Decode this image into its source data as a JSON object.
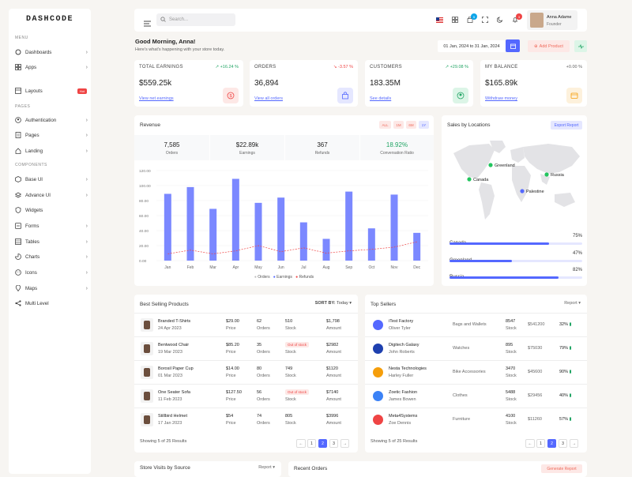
{
  "brand": "DASHCODE",
  "sidebar": {
    "menu_label": "MENU",
    "pages_label": "PAGES",
    "components_label": "COMPONENTS",
    "menu": [
      {
        "label": "Dashboards"
      },
      {
        "label": "Apps"
      },
      {
        "label": "Layouts",
        "badge": "Hot"
      }
    ],
    "pages": [
      {
        "label": "Authentication"
      },
      {
        "label": "Pages"
      },
      {
        "label": "Landing"
      }
    ],
    "components": [
      {
        "label": "Base UI"
      },
      {
        "label": "Advance UI"
      },
      {
        "label": "Widgets"
      },
      {
        "label": "Forms"
      },
      {
        "label": "Tables"
      },
      {
        "label": "Charts"
      },
      {
        "label": "Icons"
      },
      {
        "label": "Maps"
      },
      {
        "label": "Multi Level"
      }
    ]
  },
  "header": {
    "search_placeholder": "Search...",
    "cart_count": "5",
    "notif_count": "3",
    "user_name": "Anna Adame",
    "user_role": "Founder"
  },
  "greeting": {
    "title": "Good Morning, Anna!",
    "subtitle": "Here's what's happening with your store today.",
    "date_range": "01 Jan, 2024 to 31 Jan, 2024",
    "add_product": "Add Product"
  },
  "stats": [
    {
      "title": "TOTAL EARNINGS",
      "pct": "+16.24 %",
      "value": "$559.25k",
      "link": "View net earnings",
      "color": "#ef4444",
      "pct_color": "#22a565"
    },
    {
      "title": "ORDERS",
      "pct": "-3.57 %",
      "value": "36,894",
      "link": "View all orders",
      "color": "#5468ff",
      "pct_color": "#ef4444"
    },
    {
      "title": "CUSTOMERS",
      "pct": "+29.08 %",
      "value": "183.35M",
      "link": "See details",
      "color": "#22a565",
      "pct_color": "#22a565"
    },
    {
      "title": "MY BALANCE",
      "pct": "+0.00 %",
      "value": "$165.89k",
      "link": "Withdraw money",
      "color": "#f59e0b",
      "pct_color": "#666"
    }
  ],
  "revenue": {
    "title": "Revenue",
    "buttons": [
      "ALL",
      "1M",
      "6M",
      "1Y"
    ],
    "summary": [
      {
        "value": "7,585",
        "label": "Orders"
      },
      {
        "value": "$22.89k",
        "label": "Earnings"
      },
      {
        "value": "367",
        "label": "Refunds"
      },
      {
        "value": "18.92%",
        "label": "Conversation Ratio"
      }
    ],
    "legend": [
      "Orders",
      "Earnings",
      "Refunds"
    ]
  },
  "chart_data": {
    "type": "bar",
    "title": "Revenue",
    "categories": [
      "Jan",
      "Feb",
      "Mar",
      "Apr",
      "May",
      "Jun",
      "Jul",
      "Aug",
      "Sep",
      "Oct",
      "Nov",
      "Dec"
    ],
    "ylim": [
      0,
      120
    ],
    "yticks": [
      "120.00",
      "100.00",
      "80.00",
      "60.00",
      "40.00",
      "20.00",
      "0.00"
    ],
    "series": [
      {
        "name": "Earnings",
        "type": "bar",
        "values": [
          89,
          98,
          69,
          109,
          77,
          84,
          51,
          29,
          92,
          43,
          88,
          37
        ]
      },
      {
        "name": "Refunds",
        "type": "line",
        "values": [
          9,
          14,
          9,
          13,
          20,
          12,
          17,
          10,
          13,
          15,
          18,
          25
        ]
      }
    ]
  },
  "locations": {
    "title": "Sales by Locations",
    "export": "Export Report",
    "markers": [
      "Greenland",
      "Canada",
      "Russia",
      "Palestine"
    ],
    "bars": [
      {
        "name": "Canada",
        "pct": "75%",
        "value": 75
      },
      {
        "name": "Greenland",
        "pct": "47%",
        "value": 47
      },
      {
        "name": "Russia",
        "pct": "82%",
        "value": 82
      }
    ]
  },
  "best": {
    "title": "Best Selling Products",
    "sort_label": "SORT BY:",
    "sort_value": "Today",
    "footer": "Showing 5 of 25 Results",
    "pages": [
      "←",
      "1",
      "2",
      "3",
      "→"
    ],
    "rows": [
      {
        "name": "Branded T-Shirts",
        "date": "24 Apr 2023",
        "price": "$29.00",
        "orders": "62",
        "stock": "510",
        "amount": "$1,798",
        "oos": false
      },
      {
        "name": "Bentwood Chair",
        "date": "19 Mar 2023",
        "price": "$85.20",
        "orders": "35",
        "stock": "Out of stock",
        "amount": "$2982",
        "oos": true
      },
      {
        "name": "Borosil Paper Cup",
        "date": "01 Mar 2023",
        "price": "$14.00",
        "orders": "80",
        "stock": "749",
        "amount": "$1120",
        "oos": false
      },
      {
        "name": "One Seater Sofa",
        "date": "11 Feb 2023",
        "price": "$127.50",
        "orders": "56",
        "stock": "Out of stock",
        "amount": "$7140",
        "oos": true
      },
      {
        "name": "Stillbird Helmet",
        "date": "17 Jan 2023",
        "price": "$54",
        "orders": "74",
        "stock": "805",
        "amount": "$3996",
        "oos": false
      }
    ],
    "sub": {
      "price": "Price",
      "orders": "Orders",
      "stock": "Stock",
      "amount": "Amount"
    }
  },
  "sellers": {
    "title": "Top Sellers",
    "report": "Report",
    "footer": "Showing 5 of 25 Results",
    "pages": [
      "←",
      "1",
      "2",
      "3",
      "→"
    ],
    "rows": [
      {
        "name": "iTest Factory",
        "person": "Oliver Tyler",
        "cat": "Bags and Wallets",
        "stock": "8547",
        "amount": "$541200",
        "pct": "32%",
        "color": "#5468ff"
      },
      {
        "name": "Digitech Galaxy",
        "person": "John Roberts",
        "cat": "Watches",
        "stock": "895",
        "amount": "$75030",
        "pct": "79%",
        "color": "#1e40af"
      },
      {
        "name": "Nesta Technologies",
        "person": "Harley Fuller",
        "cat": "Bike Accessories",
        "stock": "3470",
        "amount": "$45600",
        "pct": "90%",
        "color": "#f59e0b"
      },
      {
        "name": "Zoetic Fashion",
        "person": "James Bowen",
        "cat": "Clothes",
        "stock": "5488",
        "amount": "$29456",
        "pct": "40%",
        "color": "#3b82f6"
      },
      {
        "name": "Meta4Systems",
        "person": "Zoe Dennis",
        "cat": "Furniture",
        "stock": "4100",
        "amount": "$11260",
        "pct": "57%",
        "color": "#ef4444"
      }
    ],
    "stock_label": "Stock"
  },
  "bottom": {
    "visits": "Store Visits by Source",
    "visits_report": "Report",
    "recent": "Recent Orders",
    "generate": "Generate Report"
  }
}
